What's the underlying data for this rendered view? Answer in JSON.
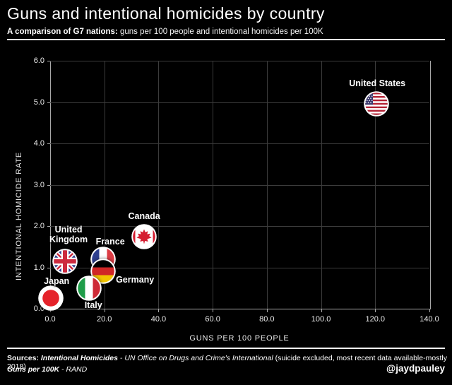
{
  "header": {
    "title": "Guns and intentional homicides by country",
    "subtitle_bold": "A comparison of G7 nations:",
    "subtitle_rest": " guns per 100 people and intentional homicides per 100K"
  },
  "chart_data": {
    "type": "scatter",
    "title": "Guns and intentional homicides by country",
    "xlabel": "GUNS PER 100 PEOPLE",
    "ylabel": "INTENTIONAL HOMICIDE RATE",
    "xlim": [
      0,
      140
    ],
    "ylim": [
      0,
      6
    ],
    "xticks": [
      0,
      20,
      40,
      60,
      80,
      100,
      120,
      140
    ],
    "yticks": [
      0,
      1,
      2,
      3,
      4,
      5,
      6
    ],
    "tick_label_format": "one_decimal",
    "grid": true,
    "legend_position": "none",
    "marker_style": "circular country flag icons with white ring",
    "points": [
      {
        "country": "United Kingdom",
        "label": "United\nKingdom",
        "guns_per_100": 5.5,
        "homicide_rate": 1.15,
        "flag": "uk"
      },
      {
        "country": "France",
        "label": "France",
        "guns_per_100": 19.6,
        "homicide_rate": 1.2,
        "flag": "fr"
      },
      {
        "country": "Germany",
        "label": "Germany",
        "guns_per_100": 19.6,
        "homicide_rate": 0.9,
        "flag": "de"
      },
      {
        "country": "Italy",
        "label": "Italy",
        "guns_per_100": 14.4,
        "homicide_rate": 0.5,
        "flag": "it"
      },
      {
        "country": "Japan",
        "label": "Japan",
        "guns_per_100": 0.3,
        "homicide_rate": 0.26,
        "flag": "jp"
      },
      {
        "country": "Canada",
        "label": "Canada",
        "guns_per_100": 34.7,
        "homicide_rate": 1.75,
        "flag": "ca"
      },
      {
        "country": "United States",
        "label": "United States",
        "guns_per_100": 120.5,
        "homicide_rate": 4.96,
        "flag": "us"
      }
    ]
  },
  "flag_colors": {
    "uk": {
      "blue": "#2c3c8e",
      "red": "#cd2a3e",
      "white": "#ffffff"
    },
    "fr": {
      "blue": "#2e3f8f",
      "red": "#dc3d45",
      "white": "#ffffff"
    },
    "de": {
      "black": "#000000",
      "red": "#d02626",
      "gold": "#f1c400"
    },
    "it": {
      "green": "#1f9d49",
      "red": "#ce2b37",
      "white": "#ffffff"
    },
    "jp": {
      "red": "#e5232b",
      "white": "#ffffff"
    },
    "ca": {
      "red": "#d51c30",
      "white": "#ffffff"
    },
    "us": {
      "blue": "#3c3b6e",
      "red": "#b22234",
      "white": "#ffffff"
    }
  },
  "style": {
    "background": "#000000",
    "text_color": "#ffffff",
    "gridline_color": "#3c3c3c",
    "axis_color": "#a8a8a8"
  },
  "footer": {
    "sources_label": "Sources:",
    "source1_name": "Intentional Homicides",
    "source1_sep": " - ",
    "source1_org": "UN Office on Drugs and Crime's International",
    "source1_note": " (suicide excluded, most recent data available-mostly 2018)",
    "source2_name": "Guns per 100K",
    "source2_sep": " - ",
    "source2_org": "RAND",
    "handle": "@jaydpauley"
  }
}
